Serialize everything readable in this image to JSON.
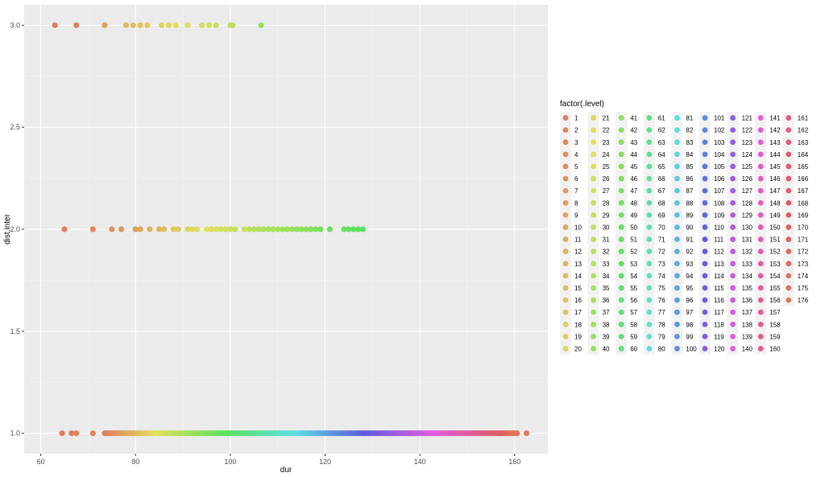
{
  "chart_data": {
    "type": "scatter",
    "xlabel": "dur",
    "ylabel": "dist.inter",
    "xlim": [
      56.5,
      167
    ],
    "ylim": [
      0.9,
      3.1
    ],
    "x_ticks": [
      60,
      80,
      100,
      120,
      140,
      160
    ],
    "y_ticks": [
      1.0,
      1.5,
      2.0,
      2.5,
      3.0
    ],
    "y_tick_labels": [
      "1.0",
      "1.5",
      "2.0",
      "2.5",
      "3.0"
    ],
    "grid": true,
    "legend": {
      "title": "factor(.level)",
      "placement": "right",
      "levels": 176,
      "rows": 20
    },
    "row_y3": {
      "x": [
        63,
        67.5,
        73.5,
        78,
        79.5,
        81,
        82.5,
        85.5,
        87,
        88.5,
        91,
        94,
        95.5,
        97,
        100,
        100.5,
        106.5
      ],
      "level": [
        1,
        2,
        8,
        14,
        15,
        16,
        18,
        20,
        21,
        23,
        24,
        26,
        27,
        29,
        30,
        31,
        40
      ]
    },
    "row_y2": {
      "x": [
        65,
        71,
        75,
        77,
        80,
        81,
        83,
        85,
        86,
        88,
        89,
        91,
        92,
        93,
        95,
        96,
        97,
        98,
        99,
        100,
        101,
        103,
        104,
        105,
        106,
        107,
        108,
        109,
        110,
        111,
        112,
        113,
        114,
        115,
        116,
        117,
        118,
        119,
        121,
        124,
        125,
        126,
        127,
        128
      ],
      "level": [
        1,
        3,
        5,
        7,
        9,
        10,
        12,
        14,
        15,
        17,
        18,
        20,
        21,
        22,
        23,
        24,
        25,
        26,
        27,
        28,
        29,
        30,
        31,
        32,
        33,
        34,
        35,
        36,
        37,
        38,
        39,
        40,
        41,
        42,
        43,
        44,
        45,
        46,
        48,
        50,
        51,
        52,
        53,
        54
      ]
    },
    "row_y1": {
      "x_start": 73.5,
      "x_end": 160.5,
      "count": 176,
      "extra_x": [
        64.5,
        66.5,
        67.5,
        71,
        162.5
      ],
      "extra_level": [
        1,
        1,
        2,
        3,
        176
      ]
    }
  }
}
